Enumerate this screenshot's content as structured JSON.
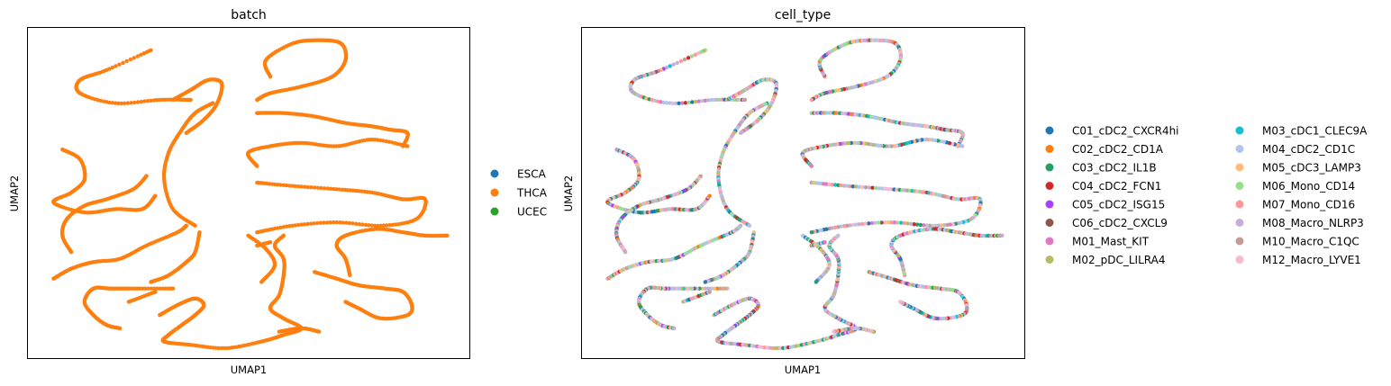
{
  "chart_data": [
    {
      "type": "scatter",
      "title": "batch",
      "xlabel": "UMAP1",
      "ylabel": "UMAP2",
      "xticks": "none",
      "yticks": "none",
      "grid": false,
      "legend_position": "right",
      "legend": [
        {
          "name": "ESCA",
          "color": "#1f77b4"
        },
        {
          "name": "THCA",
          "color": "#ff7f0e"
        },
        {
          "name": "UCEC",
          "color": "#2ca02c"
        }
      ],
      "point_color_rule": "all points THCA",
      "curves": [
        [
          [
            0.28,
            0.07
          ],
          [
            0.18,
            0.13
          ],
          [
            0.12,
            0.16
          ],
          [
            0.12,
            0.2
          ],
          [
            0.2,
            0.23
          ],
          [
            0.3,
            0.22
          ],
          [
            0.37,
            0.22
          ]
        ],
        [
          [
            0.42,
            0.23
          ],
          [
            0.38,
            0.26
          ],
          [
            0.35,
            0.31
          ],
          [
            0.32,
            0.38
          ],
          [
            0.31,
            0.46
          ],
          [
            0.33,
            0.55
          ],
          [
            0.38,
            0.6
          ]
        ],
        [
          [
            0.33,
            0.22
          ],
          [
            0.37,
            0.19
          ],
          [
            0.41,
            0.16
          ],
          [
            0.44,
            0.17
          ],
          [
            0.43,
            0.23
          ],
          [
            0.4,
            0.28
          ],
          [
            0.36,
            0.32
          ]
        ],
        [
          [
            0.55,
            0.15
          ],
          [
            0.54,
            0.1
          ],
          [
            0.6,
            0.05
          ],
          [
            0.66,
            0.04
          ],
          [
            0.71,
            0.05
          ],
          [
            0.72,
            0.1
          ],
          [
            0.69,
            0.15
          ],
          [
            0.62,
            0.18
          ],
          [
            0.55,
            0.2
          ],
          [
            0.52,
            0.22
          ]
        ],
        [
          [
            0.52,
            0.26
          ],
          [
            0.58,
            0.26
          ],
          [
            0.65,
            0.27
          ],
          [
            0.72,
            0.29
          ],
          [
            0.78,
            0.3
          ],
          [
            0.82,
            0.31
          ],
          [
            0.86,
            0.32
          ],
          [
            0.85,
            0.36
          ]
        ],
        [
          [
            0.86,
            0.36
          ],
          [
            0.78,
            0.34
          ],
          [
            0.7,
            0.36
          ],
          [
            0.62,
            0.35
          ],
          [
            0.55,
            0.36
          ],
          [
            0.5,
            0.38
          ],
          [
            0.52,
            0.42
          ]
        ],
        [
          [
            0.52,
            0.47
          ],
          [
            0.6,
            0.48
          ],
          [
            0.7,
            0.49
          ],
          [
            0.78,
            0.5
          ],
          [
            0.85,
            0.52
          ],
          [
            0.9,
            0.52
          ],
          [
            0.88,
            0.58
          ],
          [
            0.8,
            0.6
          ],
          [
            0.7,
            0.59
          ],
          [
            0.6,
            0.6
          ],
          [
            0.52,
            0.62
          ]
        ],
        [
          [
            0.08,
            0.37
          ],
          [
            0.12,
            0.4
          ],
          [
            0.13,
            0.46
          ],
          [
            0.1,
            0.5
          ],
          [
            0.06,
            0.53
          ],
          [
            0.13,
            0.56
          ],
          [
            0.2,
            0.55
          ],
          [
            0.26,
            0.55
          ],
          [
            0.29,
            0.51
          ]
        ],
        [
          [
            0.27,
            0.45
          ],
          [
            0.24,
            0.49
          ],
          [
            0.18,
            0.52
          ],
          [
            0.13,
            0.54
          ],
          [
            0.09,
            0.58
          ],
          [
            0.08,
            0.63
          ],
          [
            0.1,
            0.68
          ]
        ],
        [
          [
            0.06,
            0.76
          ],
          [
            0.1,
            0.73
          ],
          [
            0.15,
            0.71
          ],
          [
            0.21,
            0.7
          ],
          [
            0.27,
            0.66
          ],
          [
            0.34,
            0.62
          ],
          [
            0.36,
            0.6
          ]
        ],
        [
          [
            0.39,
            0.62
          ],
          [
            0.38,
            0.68
          ],
          [
            0.36,
            0.71
          ],
          [
            0.32,
            0.75
          ],
          [
            0.28,
            0.77
          ]
        ],
        [
          [
            0.5,
            0.63
          ],
          [
            0.54,
            0.67
          ],
          [
            0.56,
            0.72
          ],
          [
            0.53,
            0.77
          ]
        ],
        [
          [
            0.33,
            0.79
          ],
          [
            0.25,
            0.79
          ],
          [
            0.19,
            0.79
          ],
          [
            0.15,
            0.79
          ],
          [
            0.13,
            0.83
          ],
          [
            0.15,
            0.87
          ],
          [
            0.18,
            0.9
          ],
          [
            0.21,
            0.91
          ]
        ],
        [
          [
            0.3,
            0.87
          ],
          [
            0.34,
            0.84
          ],
          [
            0.38,
            0.82
          ],
          [
            0.4,
            0.84
          ],
          [
            0.38,
            0.87
          ],
          [
            0.35,
            0.9
          ],
          [
            0.32,
            0.93
          ],
          [
            0.31,
            0.95
          ],
          [
            0.37,
            0.96
          ],
          [
            0.45,
            0.97
          ],
          [
            0.53,
            0.95
          ],
          [
            0.58,
            0.93
          ],
          [
            0.62,
            0.91
          ],
          [
            0.58,
            0.88
          ],
          [
            0.55,
            0.85
          ],
          [
            0.57,
            0.81
          ],
          [
            0.58,
            0.75
          ],
          [
            0.58,
            0.7
          ],
          [
            0.56,
            0.66
          ],
          [
            0.58,
            0.63
          ]
        ],
        [
          [
            0.73,
            0.75
          ],
          [
            0.72,
            0.7
          ],
          [
            0.7,
            0.66
          ],
          [
            0.72,
            0.63
          ],
          [
            0.79,
            0.61
          ],
          [
            0.85,
            0.62
          ],
          [
            0.9,
            0.63
          ],
          [
            0.95,
            0.63
          ]
        ],
        [
          [
            0.65,
            0.74
          ],
          [
            0.7,
            0.76
          ],
          [
            0.75,
            0.78
          ],
          [
            0.81,
            0.79
          ],
          [
            0.85,
            0.8
          ],
          [
            0.87,
            0.84
          ],
          [
            0.86,
            0.87
          ],
          [
            0.8,
            0.88
          ],
          [
            0.75,
            0.85
          ],
          [
            0.72,
            0.83
          ]
        ],
        [
          [
            0.66,
            0.92
          ],
          [
            0.62,
            0.91
          ],
          [
            0.57,
            0.92
          ]
        ],
        [
          [
            0.23,
            0.83
          ],
          [
            0.29,
            0.8
          ]
        ],
        [
          [
            0.52,
            0.66
          ],
          [
            0.55,
            0.65
          ]
        ]
      ]
    },
    {
      "type": "scatter",
      "title": "cell_type",
      "xlabel": "UMAP1",
      "ylabel": "UMAP2",
      "xticks": "none",
      "yticks": "none",
      "grid": false,
      "legend_position": "right",
      "legend_columns": 2,
      "legend": [
        {
          "name": "C01_cDC2_CXCR4hi",
          "color": "#1f77b4"
        },
        {
          "name": "C02_cDC2_CD1A",
          "color": "#ff7f0e"
        },
        {
          "name": "C03_cDC2_IL1B",
          "color": "#279e68"
        },
        {
          "name": "C04_cDC2_FCN1",
          "color": "#d62728"
        },
        {
          "name": "C05_cDC2_ISG15",
          "color": "#aa40fc"
        },
        {
          "name": "C06_cDC2_CXCL9",
          "color": "#8c564b"
        },
        {
          "name": "M01_Mast_KIT",
          "color": "#e377c2"
        },
        {
          "name": "M02_pDC_LILRA4",
          "color": "#b5bd61"
        },
        {
          "name": "M03_cDC1_CLEC9A",
          "color": "#17becf"
        },
        {
          "name": "M04_cDC2_CD1C",
          "color": "#aec7e8"
        },
        {
          "name": "M05_cDC3_LAMP3",
          "color": "#ffbb78"
        },
        {
          "name": "M06_Mono_CD14",
          "color": "#98df8a"
        },
        {
          "name": "M07_Mono_CD16",
          "color": "#ff9896"
        },
        {
          "name": "M08_Macro_NLRP3",
          "color": "#c5b0d5"
        },
        {
          "name": "M10_Macro_C1QC",
          "color": "#c49c94"
        },
        {
          "name": "M12_Macro_LYVE1",
          "color": "#f7b6d2"
        }
      ],
      "point_color_rule": "mixed cell types along each curve"
    }
  ]
}
